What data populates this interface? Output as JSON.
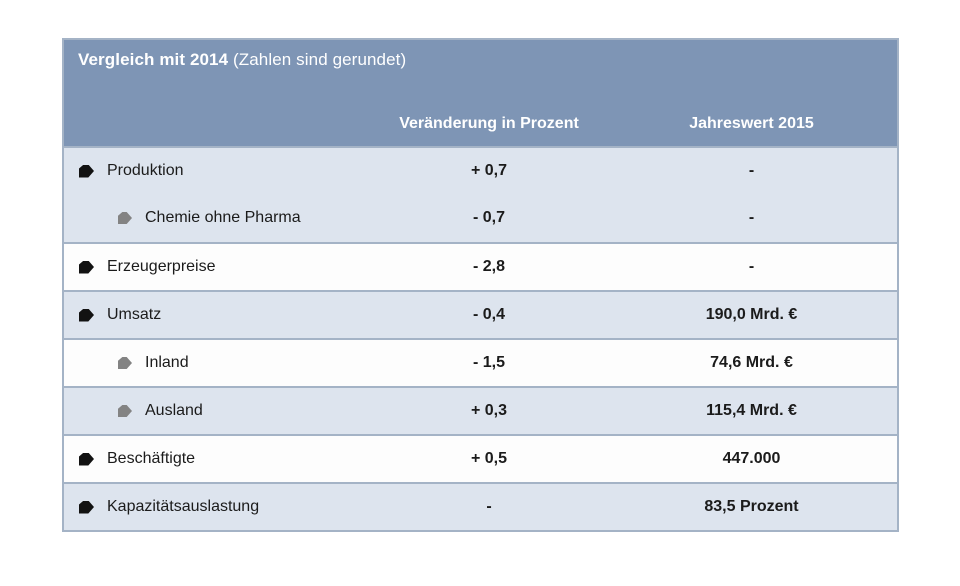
{
  "table": {
    "title": "Vergleich mit 2014",
    "title_note": " (Zahlen sind gerundet)",
    "column_headers": {
      "change": "Veränderung in Prozent",
      "year": "Jahreswert 2015"
    },
    "rows": [
      {
        "label": "Produktion",
        "level": 0,
        "merged_with_previous": false,
        "change": "+ 0,7",
        "value": "-"
      },
      {
        "label": "Chemie ohne Pharma",
        "level": 1,
        "merged_with_previous": true,
        "change": "- 0,7",
        "value": "-"
      },
      {
        "label": "Erzeugerpreise",
        "level": 0,
        "merged_with_previous": false,
        "change": "- 2,8",
        "value": "-"
      },
      {
        "label": "Umsatz",
        "level": 0,
        "merged_with_previous": false,
        "change": "- 0,4",
        "value": "190,0 Mrd. €"
      },
      {
        "label": "Inland",
        "level": 1,
        "merged_with_previous": false,
        "change": "- 1,5",
        "value": "74,6 Mrd. €"
      },
      {
        "label": "Ausland",
        "level": 1,
        "merged_with_previous": false,
        "change": "+ 0,3",
        "value": "115,4 Mrd. €"
      },
      {
        "label": "Beschäftigte",
        "level": 0,
        "merged_with_previous": false,
        "change": "+ 0,5",
        "value": "447.000"
      },
      {
        "label": "Kapazitätsauslastung",
        "level": 0,
        "merged_with_previous": false,
        "change": "-",
        "value": "83,5 Prozent"
      }
    ],
    "colors": {
      "header_bg": "#7e95b5",
      "row_shaded_bg": "#dde4ee",
      "row_plain_bg": "#fdfdfd",
      "separator": "#a4b3c6",
      "bullet_primary": "#121212",
      "bullet_secondary": "#838383",
      "header_text": "#ffffff",
      "body_text": "#1b1b1b"
    }
  }
}
